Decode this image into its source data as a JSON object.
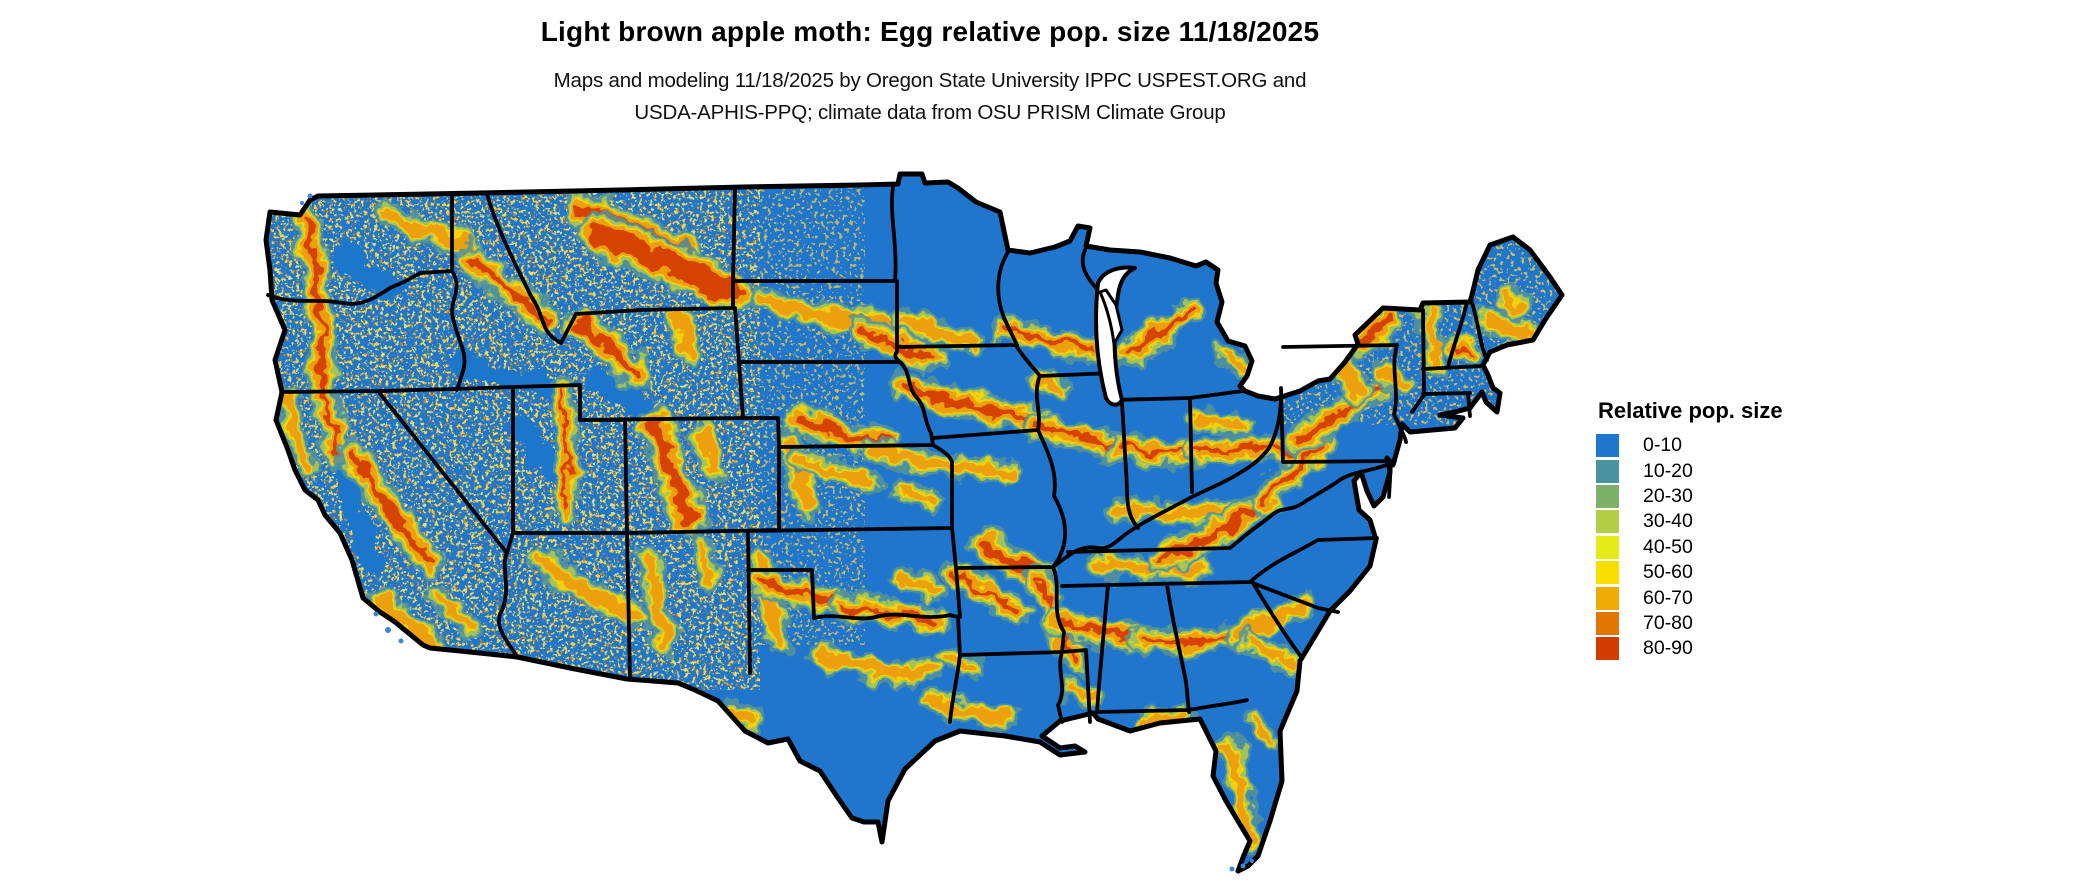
{
  "title": "Light brown apple moth: Egg relative pop. size 11/18/2025",
  "subtitle_line1": "Maps and modeling 11/18/2025 by Oregon State University IPPC USPEST.ORG and",
  "subtitle_line2": "USDA-APHIS-PPQ; climate data from OSU PRISM Climate Group",
  "legend": {
    "title": "Relative pop. size",
    "items": [
      {
        "label": "0-10",
        "color": "#1F76CC"
      },
      {
        "label": "10-20",
        "color": "#4B93A2"
      },
      {
        "label": "20-30",
        "color": "#7DB069"
      },
      {
        "label": "30-40",
        "color": "#B3CF45"
      },
      {
        "label": "40-50",
        "color": "#E4EB18"
      },
      {
        "label": "50-60",
        "color": "#F8DF00"
      },
      {
        "label": "60-70",
        "color": "#EFAC07"
      },
      {
        "label": "70-80",
        "color": "#E17602"
      },
      {
        "label": "80-90",
        "color": "#D23B01"
      }
    ]
  },
  "map": {
    "land_base_color": "#1F76CC",
    "state_border_color": "#000000",
    "water_color": "#FFFFFF",
    "background_color": "#FFFFFF",
    "terrain_palette": {
      "teal_fringe": "#54939B",
      "green_fringe": "#A6C756",
      "yellow": "#F2D20B",
      "orange": "#ECA009",
      "red_core": "#D64301"
    }
  }
}
